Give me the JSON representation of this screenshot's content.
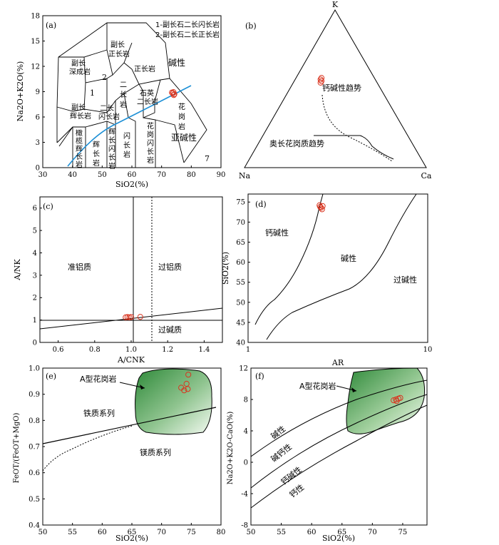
{
  "chart_data": [
    {
      "panel": "(a)",
      "type": "scatter",
      "xlabel": "SiO2(%)",
      "ylabel": "Na2O+K2O(%)",
      "xlim": [
        30,
        90
      ],
      "ylim": [
        0,
        18
      ],
      "xticks": [
        "30",
        "40",
        "50",
        "60",
        "70",
        "80",
        "90"
      ],
      "yticks": [
        "0",
        "3",
        "6",
        "9",
        "12",
        "15",
        "18"
      ],
      "legend": [
        "1-副长石二长闪长岩",
        "2-副长石二长正长岩"
      ],
      "field_labels": {
        "fu_zhengchang": [
          "副长",
          "正长岩"
        ],
        "fu_shencheng": [
          "副长",
          "深成岩"
        ],
        "two": "2",
        "one": "1",
        "zhengchang": "正长岩",
        "erchang": [
          "二",
          "长",
          "岩"
        ],
        "shiying": [
          "石英",
          "二长岩"
        ],
        "huagang": [
          "花",
          "岗",
          "岩"
        ],
        "fu_hui": [
          "副长",
          "辉长岩"
        ],
        "erchang_shanchang": [
          "二长",
          "闪长岩"
        ],
        "ganlan": [
          "橄",
          "榄",
          "辉",
          "长",
          "岩"
        ],
        "huichang": [
          "辉",
          "长",
          "岩"
        ],
        "hui_shan": [
          "辉",
          "长",
          "闪",
          "长",
          "岩"
        ],
        "shanchang": [
          "闪",
          "长",
          "岩"
        ],
        "huagang_shan": [
          "花",
          "岗",
          "闪",
          "长",
          "岩"
        ],
        "seven": "7"
      },
      "series_labels": {
        "alkaline": "碱性",
        "subalkaline": "亚碱性"
      },
      "colors": {
        "divider": "#1e90d6",
        "points": "#d9341f"
      },
      "points": [
        {
          "x": 73.5,
          "y": 8.9
        },
        {
          "x": 73.8,
          "y": 8.8
        },
        {
          "x": 74.0,
          "y": 8.95
        },
        {
          "x": 74.3,
          "y": 8.7
        },
        {
          "x": 74.1,
          "y": 8.6
        }
      ]
    },
    {
      "panel": "(b)",
      "type": "ternary",
      "vertices": {
        "top": "K",
        "left": "Na",
        "right": "Ca"
      },
      "annotations": [
        "钙碱性趋势",
        "奥长花岗质趋势"
      ],
      "points": [
        {
          "k": 0.75,
          "na": 0.2,
          "ca": 0.05
        },
        {
          "k": 0.74,
          "na": 0.21,
          "ca": 0.05
        },
        {
          "k": 0.73,
          "na": 0.21,
          "ca": 0.06
        },
        {
          "k": 0.72,
          "na": 0.22,
          "ca": 0.06
        }
      ]
    },
    {
      "panel": "(c)",
      "type": "scatter",
      "xlabel": "A/CNK",
      "ylabel": "A/NK",
      "xlim": [
        0.5,
        1.5
      ],
      "ylim": [
        0,
        6.5
      ],
      "xticks": [
        "0.6",
        "0.8",
        "1.0",
        "1.2",
        "1.4"
      ],
      "yticks": [
        "0",
        "1",
        "2",
        "3",
        "4",
        "5",
        "6"
      ],
      "field_labels": [
        "准铝质",
        "过铝质",
        "过碱质"
      ],
      "points": [
        {
          "x": 0.97,
          "y": 1.12
        },
        {
          "x": 0.98,
          "y": 1.13
        },
        {
          "x": 0.99,
          "y": 1.12
        },
        {
          "x": 1.0,
          "y": 1.13
        },
        {
          "x": 1.05,
          "y": 1.14
        }
      ]
    },
    {
      "panel": "(d)",
      "type": "scatter",
      "xlabel": "AR",
      "ylabel": "SiO2(%)",
      "xscale": "log",
      "xlim": [
        1,
        10
      ],
      "ylim": [
        40,
        77
      ],
      "xticks": [
        "1",
        "10"
      ],
      "yticks": [
        "40",
        "45",
        "50",
        "55",
        "60",
        "65",
        "70",
        "75"
      ],
      "field_labels": [
        "钙碱性",
        "碱性",
        "过碱性"
      ],
      "points": [
        {
          "x": 2.5,
          "y": 74.2
        },
        {
          "x": 2.55,
          "y": 73.6
        },
        {
          "x": 2.6,
          "y": 74.0
        },
        {
          "x": 2.58,
          "y": 73.2
        },
        {
          "x": 2.52,
          "y": 73.8
        }
      ]
    },
    {
      "panel": "(e)",
      "type": "scatter",
      "xlabel": "SiO2(%)",
      "ylabel": "FeOT/(FeOT+MgO)",
      "xlim": [
        50,
        80
      ],
      "ylim": [
        0.4,
        1.0
      ],
      "xticks": [
        "50",
        "55",
        "60",
        "65",
        "70",
        "75",
        "80"
      ],
      "yticks": [
        "0.4",
        "0.5",
        "0.6",
        "0.7",
        "0.8",
        "0.9",
        "1.0"
      ],
      "field_labels": [
        "A型花岗岩",
        "铁质系列",
        "镁质系列"
      ],
      "points": [
        {
          "x": 74.5,
          "y": 0.975
        },
        {
          "x": 74.2,
          "y": 0.94
        },
        {
          "x": 73.3,
          "y": 0.925
        },
        {
          "x": 73.8,
          "y": 0.915
        },
        {
          "x": 74.4,
          "y": 0.92
        }
      ]
    },
    {
      "panel": "(f)",
      "type": "scatter",
      "xlabel": "SiO2(%)",
      "ylabel": "Na2O+K2O-CaO(%)",
      "xlim": [
        50,
        79
      ],
      "ylim": [
        -8,
        12
      ],
      "xticks": [
        "50",
        "55",
        "60",
        "65",
        "70",
        "75"
      ],
      "yticks": [
        "-8",
        "-4",
        "0",
        "4",
        "8",
        "12"
      ],
      "field_labels": [
        "A型花岗岩",
        "碱性",
        "碱钙性",
        "钙碱性",
        "钙性"
      ],
      "points": [
        {
          "x": 73.5,
          "y": 7.9
        },
        {
          "x": 73.9,
          "y": 8.0
        },
        {
          "x": 74.3,
          "y": 8.1
        },
        {
          "x": 74.6,
          "y": 8.2
        },
        {
          "x": 74.0,
          "y": 7.8
        }
      ]
    }
  ]
}
